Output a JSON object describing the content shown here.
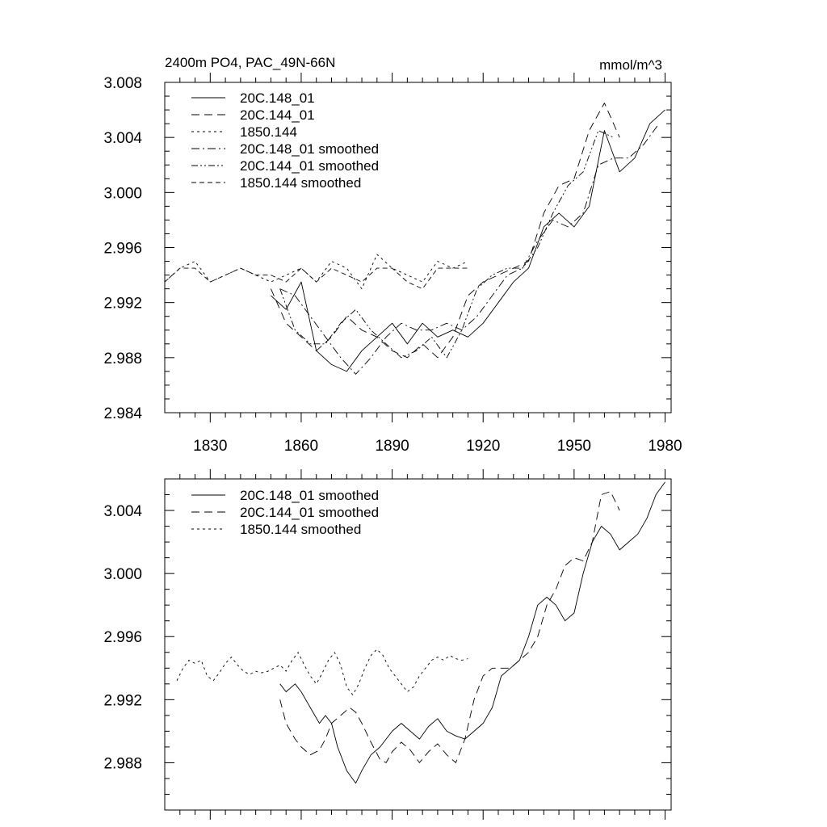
{
  "chart_data": [
    {
      "type": "line",
      "title": "2400m PO4, PAC_49N-66N",
      "units": "mmol/m^3",
      "xlabel": "",
      "ylabel": "",
      "xlim": [
        1815,
        1982
      ],
      "ylim": [
        2.984,
        3.008
      ],
      "xticks": [
        1830,
        1860,
        1890,
        1920,
        1950,
        1980
      ],
      "xtick_labels": [
        "1830",
        "1860",
        "1890",
        "1920",
        "1950",
        "1980"
      ],
      "yticks": [
        2.984,
        2.988,
        2.992,
        2.996,
        3.0,
        3.004,
        3.008
      ],
      "ytick_labels": [
        "2.984",
        "2.988",
        "2.992",
        "2.996",
        "3.000",
        "3.004",
        "3.008"
      ],
      "legend_position": "top-left",
      "series": [
        {
          "name": "20C.148_01",
          "dash": "solid",
          "x": [
            1850,
            1855,
            1860,
            1865,
            1870,
            1875,
            1880,
            1885,
            1890,
            1895,
            1900,
            1905,
            1910,
            1915,
            1920,
            1925,
            1930,
            1935,
            1940,
            1945,
            1950,
            1955,
            1960,
            1965,
            1970,
            1975,
            1980
          ],
          "y": [
            2.9925,
            2.9915,
            2.9935,
            2.9885,
            2.9875,
            2.987,
            2.9885,
            2.9895,
            2.9905,
            2.989,
            2.9905,
            2.9895,
            2.99,
            2.9895,
            2.9905,
            2.992,
            2.9935,
            2.9945,
            2.9975,
            2.9985,
            2.9975,
            2.999,
            3.0045,
            3.0015,
            3.0025,
            3.005,
            3.006
          ]
        },
        {
          "name": "20C.144_01",
          "dash": "long",
          "x": [
            1850,
            1855,
            1860,
            1865,
            1870,
            1875,
            1880,
            1885,
            1890,
            1895,
            1900,
            1905,
            1910,
            1915,
            1920,
            1925,
            1930,
            1935,
            1940,
            1945,
            1950,
            1955,
            1960,
            1965
          ],
          "y": [
            2.993,
            2.9905,
            2.9895,
            2.9885,
            2.9895,
            2.991,
            2.99,
            2.9895,
            2.9885,
            2.988,
            2.989,
            2.988,
            2.9895,
            2.9925,
            2.9935,
            2.994,
            2.9945,
            2.995,
            2.9985,
            3.0005,
            3.001,
            3.0045,
            3.0065,
            3.004
          ]
        },
        {
          "name": "1850.144",
          "dash": "short",
          "x": [
            1815,
            1820,
            1825,
            1830,
            1835,
            1840,
            1845,
            1850,
            1855,
            1860,
            1865,
            1870,
            1875,
            1880,
            1885,
            1890,
            1895,
            1900,
            1905,
            1910,
            1915
          ],
          "y": [
            2.9935,
            2.9945,
            2.995,
            2.9935,
            2.994,
            2.9945,
            2.994,
            2.9935,
            2.994,
            2.9945,
            2.9935,
            2.995,
            2.9945,
            2.993,
            2.9955,
            2.9945,
            2.994,
            2.9935,
            2.995,
            2.9945,
            2.995
          ]
        },
        {
          "name": "20C.148_01 smoothed",
          "dash": "dashdot",
          "x": [
            1853,
            1858,
            1863,
            1868,
            1873,
            1878,
            1883,
            1888,
            1893,
            1898,
            1903,
            1908,
            1913,
            1918,
            1923,
            1928,
            1933,
            1938,
            1943,
            1948,
            1953,
            1958,
            1963,
            1968,
            1973,
            1978
          ],
          "y": [
            2.993,
            2.9925,
            2.991,
            2.9895,
            2.988,
            2.9868,
            2.988,
            2.9895,
            2.9905,
            2.99,
            2.99,
            2.9905,
            2.99,
            2.991,
            2.9925,
            2.994,
            2.9945,
            2.9965,
            2.998,
            2.9975,
            2.9985,
            3.002,
            3.0025,
            3.0025,
            3.0035,
            3.005
          ]
        },
        {
          "name": "20C.144_01 smoothed",
          "dash": "dashdotdot",
          "x": [
            1853,
            1858,
            1863,
            1868,
            1873,
            1878,
            1883,
            1888,
            1893,
            1898,
            1903,
            1908,
            1913,
            1918,
            1923,
            1928,
            1933,
            1938,
            1943,
            1948,
            1953,
            1958,
            1963
          ],
          "y": [
            2.993,
            2.99,
            2.989,
            2.989,
            2.9905,
            2.9915,
            2.99,
            2.989,
            2.988,
            2.9885,
            2.9895,
            2.988,
            2.99,
            2.993,
            2.994,
            2.9945,
            2.9945,
            2.996,
            2.9985,
            3.0005,
            3.0015,
            3.0045,
            3.004
          ]
        },
        {
          "name": "1850.144 smoothed",
          "dash": "medium",
          "x": [
            1815,
            1820,
            1825,
            1830,
            1835,
            1840,
            1845,
            1850,
            1855,
            1860,
            1865,
            1870,
            1875,
            1880,
            1885,
            1890,
            1895,
            1900,
            1905,
            1910,
            1915
          ],
          "y": [
            2.9935,
            2.9945,
            2.9945,
            2.9935,
            2.994,
            2.9945,
            2.994,
            2.994,
            2.9935,
            2.9945,
            2.9935,
            2.9945,
            2.994,
            2.9935,
            2.9945,
            2.9945,
            2.9935,
            2.993,
            2.9945,
            2.9945,
            2.9945
          ]
        }
      ]
    },
    {
      "type": "line",
      "title": "",
      "xlabel": "",
      "ylabel": "",
      "xlim": [
        1815,
        1982
      ],
      "ylim": [
        2.985,
        3.006
      ],
      "xticks": [
        1830,
        1860,
        1890,
        1920,
        1950,
        1980
      ],
      "xtick_labels": [],
      "yticks": [
        2.988,
        2.992,
        2.996,
        3.0,
        3.004
      ],
      "ytick_labels": [
        "2.988",
        "2.992",
        "2.996",
        "3.000",
        "3.004"
      ],
      "legend_position": "top-left",
      "series": [
        {
          "name": "20C.148_01 smoothed",
          "dash": "solid",
          "x": [
            1853,
            1855,
            1858,
            1860,
            1863,
            1866,
            1868,
            1870,
            1872,
            1875,
            1878,
            1880,
            1883,
            1886,
            1888,
            1890,
            1893,
            1896,
            1899,
            1902,
            1905,
            1908,
            1911,
            1914,
            1917,
            1920,
            1923,
            1926,
            1929,
            1932,
            1935,
            1938,
            1941,
            1944,
            1947,
            1950,
            1953,
            1956,
            1959,
            1962,
            1965,
            1968,
            1971,
            1974,
            1977,
            1980
          ],
          "y": [
            2.993,
            2.9925,
            2.993,
            2.9925,
            2.9915,
            2.9905,
            2.991,
            2.9905,
            2.989,
            2.9875,
            2.9867,
            2.9875,
            2.9885,
            2.989,
            2.9895,
            2.99,
            2.9905,
            2.99,
            2.9895,
            2.9903,
            2.9908,
            2.99,
            2.9897,
            2.9895,
            2.99,
            2.9905,
            2.9915,
            2.9935,
            2.994,
            2.9945,
            2.996,
            2.998,
            2.9985,
            2.998,
            2.997,
            2.9975,
            3.0,
            3.002,
            3.003,
            3.0025,
            3.0015,
            3.002,
            3.0025,
            3.0035,
            3.005,
            3.0058
          ]
        },
        {
          "name": "20C.144_01 smoothed",
          "dash": "long",
          "x": [
            1853,
            1855,
            1858,
            1860,
            1863,
            1866,
            1868,
            1870,
            1873,
            1876,
            1878,
            1880,
            1883,
            1886,
            1888,
            1890,
            1893,
            1896,
            1899,
            1902,
            1905,
            1908,
            1911,
            1914,
            1917,
            1920,
            1923,
            1926,
            1929,
            1932,
            1935,
            1938,
            1941,
            1944,
            1947,
            1950,
            1953,
            1956,
            1959,
            1962,
            1965
          ],
          "y": [
            2.992,
            2.9905,
            2.9895,
            2.989,
            2.9885,
            2.9888,
            2.9895,
            2.9905,
            2.991,
            2.9915,
            2.9912,
            2.9905,
            2.9893,
            2.9882,
            2.988,
            2.9887,
            2.9893,
            2.9888,
            2.988,
            2.9887,
            2.9892,
            2.9885,
            2.988,
            2.9895,
            2.992,
            2.9935,
            2.994,
            2.994,
            2.994,
            2.9945,
            2.995,
            2.996,
            2.998,
            2.999,
            3.0005,
            3.001,
            3.0008,
            3.002,
            3.005,
            3.0052,
            3.004
          ]
        },
        {
          "name": "1850.144 smoothed",
          "dash": "short",
          "x": [
            1819,
            1821,
            1823,
            1825,
            1827,
            1829,
            1831,
            1833,
            1835,
            1837,
            1839,
            1841,
            1843,
            1845,
            1847,
            1849,
            1851,
            1853,
            1855,
            1857,
            1859,
            1861,
            1863,
            1865,
            1867,
            1869,
            1871,
            1873,
            1875,
            1877,
            1879,
            1881,
            1883,
            1885,
            1887,
            1889,
            1891,
            1893,
            1895,
            1897,
            1899,
            1901,
            1903,
            1905,
            1907,
            1909,
            1911,
            1913,
            1915
          ],
          "y": [
            2.9932,
            2.994,
            2.9945,
            2.9943,
            2.9945,
            2.9935,
            2.9932,
            2.9937,
            2.9943,
            2.9947,
            2.9942,
            2.9938,
            2.9936,
            2.9938,
            2.9937,
            2.9938,
            2.994,
            2.9942,
            2.9938,
            2.9945,
            2.995,
            2.9942,
            2.9935,
            2.993,
            2.9937,
            2.9945,
            2.995,
            2.9942,
            2.9928,
            2.9923,
            2.993,
            2.994,
            2.9948,
            2.9952,
            2.9948,
            2.994,
            2.9935,
            2.993,
            2.9925,
            2.9928,
            2.9935,
            2.994,
            2.9945,
            2.9947,
            2.9945,
            2.9948,
            2.9946,
            2.9945,
            2.9946
          ]
        }
      ]
    }
  ]
}
